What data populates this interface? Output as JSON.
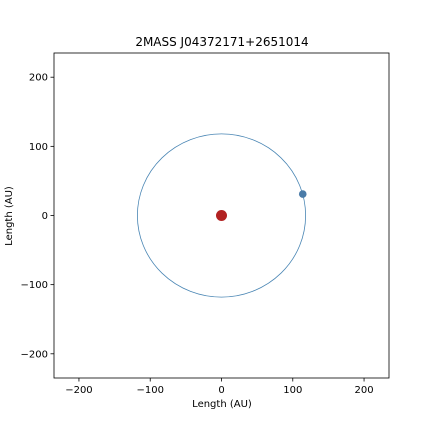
{
  "chart_data": {
    "type": "scatter",
    "title": "2MASS J04372171+2651014",
    "xlabel": "Length (AU)",
    "ylabel": "Length (AU)",
    "xlim": [
      -235,
      235
    ],
    "ylim": [
      -235,
      235
    ],
    "xticks": [
      -200,
      -100,
      0,
      100,
      200
    ],
    "yticks": [
      -200,
      -100,
      0,
      100,
      200
    ],
    "xtick_labels": [
      "−200",
      "−100",
      "0",
      "100",
      "200"
    ],
    "ytick_labels": [
      "−200",
      "−100",
      "0",
      "100",
      "200"
    ],
    "grid": false,
    "orbit": {
      "center": [
        0,
        0
      ],
      "radius": 118,
      "color": "#4a86b4"
    },
    "star": {
      "x": 0,
      "y": 0,
      "color": "#b22222"
    },
    "planet": {
      "x": 114,
      "y": 31,
      "color": "#4a7ba8"
    }
  }
}
